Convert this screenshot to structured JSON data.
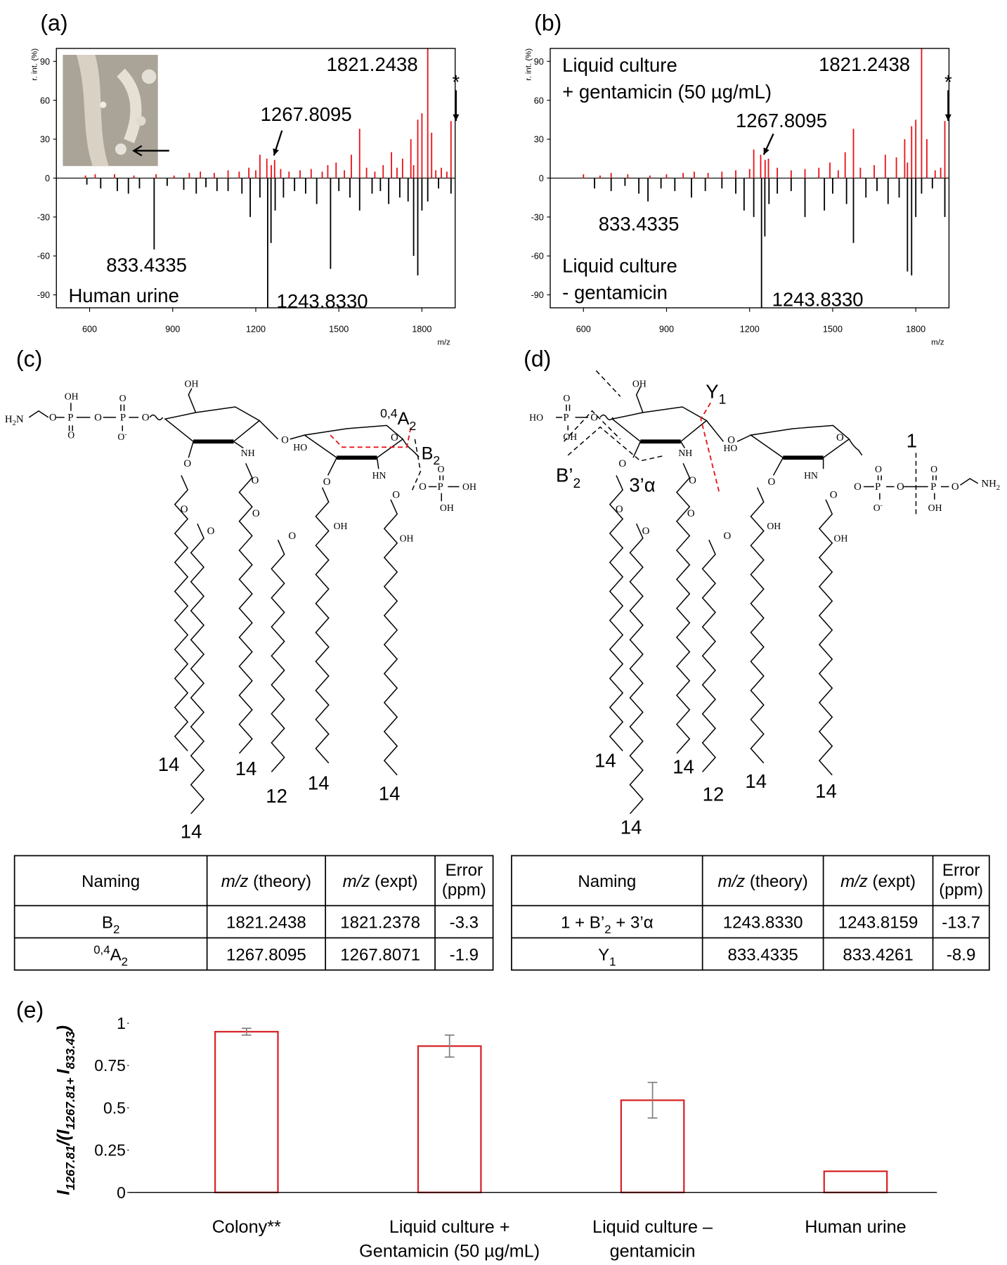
{
  "chart_data": [
    {
      "type": "spectrum",
      "panel_label": "(a)",
      "ylabel": "r. int. (%)",
      "xlabel": "m/z",
      "xlim": [
        480,
        1920
      ],
      "xticks": [
        600,
        900,
        1200,
        1500,
        1800
      ],
      "ylim": [
        -100,
        100
      ],
      "yticks": [
        90,
        60,
        30,
        0,
        -30,
        -60,
        -90
      ],
      "series": [
        {
          "color": "#e8141b",
          "x": [
            585,
            620,
            690,
            760,
            840,
            905,
            960,
            1000,
            1050,
            1100,
            1140,
            1175,
            1200,
            1215,
            1240,
            1256,
            1268,
            1290,
            1320,
            1360,
            1400,
            1440,
            1460,
            1490,
            1520,
            1545,
            1575,
            1600,
            1630,
            1660,
            1690,
            1710,
            1730,
            1760,
            1770,
            1785,
            1800,
            1821,
            1835,
            1850,
            1870,
            1890,
            1905
          ],
          "values": [
            2,
            3,
            3,
            2,
            3,
            2,
            4,
            5,
            4,
            6,
            5,
            8,
            6,
            18,
            15,
            10,
            14,
            7,
            5,
            6,
            7,
            5,
            10,
            12,
            6,
            18,
            38,
            8,
            5,
            10,
            20,
            8,
            15,
            30,
            10,
            45,
            50,
            100,
            35,
            6,
            8,
            5,
            44
          ]
        },
        {
          "color": "#000000",
          "x": [
            590,
            640,
            700,
            740,
            780,
            833,
            880,
            940,
            985,
            1020,
            1060,
            1100,
            1150,
            1180,
            1215,
            1243,
            1255,
            1270,
            1300,
            1340,
            1380,
            1420,
            1470,
            1500,
            1540,
            1575,
            1620,
            1650,
            1680,
            1720,
            1750,
            1770,
            1785,
            1800,
            1821,
            1860,
            1905
          ],
          "values": [
            -5,
            -8,
            -10,
            -12,
            -8,
            -55,
            -6,
            -9,
            -12,
            -7,
            -10,
            -10,
            -12,
            -30,
            -15,
            -100,
            -50,
            -25,
            -15,
            -10,
            -12,
            -20,
            -70,
            -10,
            -15,
            -25,
            -12,
            -10,
            -20,
            -15,
            -18,
            -60,
            -75,
            -25,
            -18,
            -8,
            -12
          ]
        }
      ],
      "annotations": [
        "1821.2438",
        "1267.8095",
        "833.4335",
        "1243.8330",
        "*"
      ],
      "notes": [
        "Human urine"
      ]
    },
    {
      "type": "spectrum",
      "panel_label": "(b)",
      "ylabel": "r. int. (%)",
      "xlabel": "m/z",
      "xlim": [
        480,
        1920
      ],
      "xticks": [
        600,
        900,
        1200,
        1500,
        1800
      ],
      "ylim": [
        -100,
        100
      ],
      "yticks": [
        90,
        60,
        30,
        0,
        -30,
        -60,
        -90
      ],
      "series": [
        {
          "color": "#e8141b",
          "x": [
            600,
            660,
            700,
            760,
            840,
            900,
            960,
            1000,
            1050,
            1100,
            1150,
            1200,
            1215,
            1240,
            1256,
            1268,
            1300,
            1350,
            1400,
            1450,
            1490,
            1520,
            1545,
            1575,
            1600,
            1650,
            1690,
            1730,
            1760,
            1770,
            1785,
            1800,
            1821,
            1840,
            1870,
            1890,
            1905
          ],
          "values": [
            3,
            2,
            4,
            3,
            2,
            3,
            4,
            5,
            4,
            5,
            6,
            7,
            22,
            18,
            14,
            15,
            8,
            6,
            7,
            8,
            12,
            6,
            20,
            38,
            8,
            10,
            18,
            16,
            30,
            12,
            40,
            45,
            100,
            30,
            6,
            8,
            44
          ]
        },
        {
          "color": "#000000",
          "x": [
            640,
            700,
            750,
            800,
            833,
            880,
            930,
            990,
            1040,
            1100,
            1150,
            1180,
            1215,
            1243,
            1255,
            1270,
            1300,
            1350,
            1400,
            1470,
            1500,
            1550,
            1575,
            1620,
            1660,
            1700,
            1740,
            1770,
            1785,
            1800,
            1821,
            1860,
            1905
          ],
          "values": [
            -8,
            -10,
            -6,
            -12,
            -18,
            -8,
            -10,
            -15,
            -10,
            -8,
            -12,
            -25,
            -30,
            -100,
            -45,
            -20,
            -12,
            -10,
            -30,
            -25,
            -12,
            -20,
            -50,
            -15,
            -10,
            -20,
            -15,
            -72,
            -75,
            -30,
            -12,
            -8,
            -30
          ]
        }
      ],
      "annotations": [
        "1821.2438",
        "1267.8095",
        "833.4335",
        "1243.8330",
        "*"
      ],
      "notes": [
        "Liquid culture",
        "+ gentamicin (50 µg/mL)",
        "Liquid culture",
        "- gentamicin"
      ]
    },
    {
      "type": "bar",
      "panel_label": "(e)",
      "ylabel": [
        {
          "text": "I"
        },
        {
          "text": "1267.81",
          "sub": true
        },
        {
          "text": "/("
        },
        {
          "text": "I"
        },
        {
          "text": "1267.81+ ",
          "sub": true
        },
        {
          "text": "I"
        },
        {
          "text": "833.43",
          "sub": true
        },
        {
          "text": ")"
        }
      ],
      "categories": [
        [
          "Colony**"
        ],
        [
          "Liquid culture +",
          "Gentamicin (50 µg/mL)"
        ],
        [
          "Liquid culture –",
          "gentamicin"
        ],
        [
          "Human urine"
        ]
      ],
      "values": [
        0.95,
        0.865,
        0.545,
        0.125
      ],
      "errors": [
        0.02,
        0.065,
        0.105,
        null
      ],
      "color": "#d9262b",
      "error_color": "#808080",
      "ylim": [
        0,
        1
      ],
      "yticks": [
        0,
        0.25,
        0.5,
        0.75,
        1
      ]
    }
  ],
  "structures": [
    {
      "panel_label": "(c)",
      "labels": [
        [
          {
            "text": "H"
          },
          {
            "text": "2",
            "sub": true
          },
          {
            "text": "N"
          }
        ],
        "O",
        "P",
        "OH",
        "O",
        "O",
        "P",
        "O",
        [
          {
            "text": "O"
          },
          {
            "text": "-",
            "sup": true
          }
        ],
        "O",
        "OH",
        "NH",
        "O",
        "HO",
        "O",
        "HN",
        "O",
        "P",
        "OH",
        "O",
        "OH",
        "O",
        "O",
        "O",
        "O",
        "O",
        "O",
        "O",
        "O",
        "OH",
        "OH",
        [
          {
            "text": "0,4",
            "sup": true
          },
          {
            "text": "A"
          },
          {
            "text": "2",
            "sub": true
          }
        ],
        [
          {
            "text": "B"
          },
          {
            "text": "2",
            "sub": true
          }
        ],
        "14",
        "14",
        "14",
        "12",
        "14",
        "14"
      ]
    },
    {
      "panel_label": "(d)",
      "labels": [
        "HO",
        "P",
        "O",
        "OH",
        "O",
        "OH",
        "NH",
        "O",
        "HO",
        "O",
        "HN",
        "O",
        "P",
        "O",
        "P",
        "O",
        [
          {
            "text": "NH"
          },
          {
            "text": "2",
            "sub": true
          }
        ],
        "O",
        [
          {
            "text": "O"
          },
          {
            "text": "-",
            "sup": true
          }
        ],
        "O",
        "OH",
        "O",
        "O",
        "O",
        "O",
        "O",
        "O",
        "O",
        "O",
        "OH",
        "OH",
        [
          {
            "text": "Y"
          },
          {
            "text": "1",
            "sub": true
          }
        ],
        [
          {
            "text": "B’"
          },
          {
            "text": "2",
            "sub": true
          }
        ],
        "3’α",
        "1",
        "14",
        "14",
        "14",
        "12",
        "14",
        "14"
      ]
    }
  ],
  "tables": [
    {
      "header": [
        [
          {
            "text": "Naming"
          }
        ],
        [
          {
            "text": "m/z",
            "italic": true
          },
          {
            "text": " (theory)"
          }
        ],
        [
          {
            "text": "m/z",
            "italic": true
          },
          {
            "text": " (expt)"
          }
        ],
        [
          {
            "text": "Error"
          },
          {
            "text": "(ppm)",
            "newline": true
          }
        ]
      ],
      "rows": [
        [
          [
            {
              "text": "B"
            },
            {
              "text": "2",
              "sub": true
            }
          ],
          [
            {
              "text": "1821.2438"
            }
          ],
          [
            {
              "text": "1821.2378"
            }
          ],
          [
            {
              "text": "-3.3"
            }
          ]
        ],
        [
          [
            {
              "text": "0,4",
              "sup": true
            },
            {
              "text": "A"
            },
            {
              "text": "2",
              "sub": true
            }
          ],
          [
            {
              "text": "1267.8095"
            }
          ],
          [
            {
              "text": "1267.8071"
            }
          ],
          [
            {
              "text": "-1.9"
            }
          ]
        ]
      ]
    },
    {
      "header": [
        [
          {
            "text": "Naming"
          }
        ],
        [
          {
            "text": "m/z",
            "italic": true
          },
          {
            "text": " (theory)"
          }
        ],
        [
          {
            "text": "m/z",
            "italic": true
          },
          {
            "text": " (expt)"
          }
        ],
        [
          {
            "text": "Error"
          },
          {
            "text": "(ppm)",
            "newline": true
          }
        ]
      ],
      "rows": [
        [
          [
            {
              "text": "1 + B’"
            },
            {
              "text": "2",
              "sub": true
            },
            {
              "text": " + 3’α"
            }
          ],
          [
            {
              "text": "1243.8330"
            }
          ],
          [
            {
              "text": "1243.8159"
            }
          ],
          [
            {
              "text": "-13.7"
            }
          ]
        ],
        [
          [
            {
              "text": "Y"
            },
            {
              "text": "1",
              "sub": true
            }
          ],
          [
            {
              "text": "833.4335"
            }
          ],
          [
            {
              "text": "833.4261"
            }
          ],
          [
            {
              "text": "-8.9"
            }
          ]
        ]
      ]
    }
  ]
}
